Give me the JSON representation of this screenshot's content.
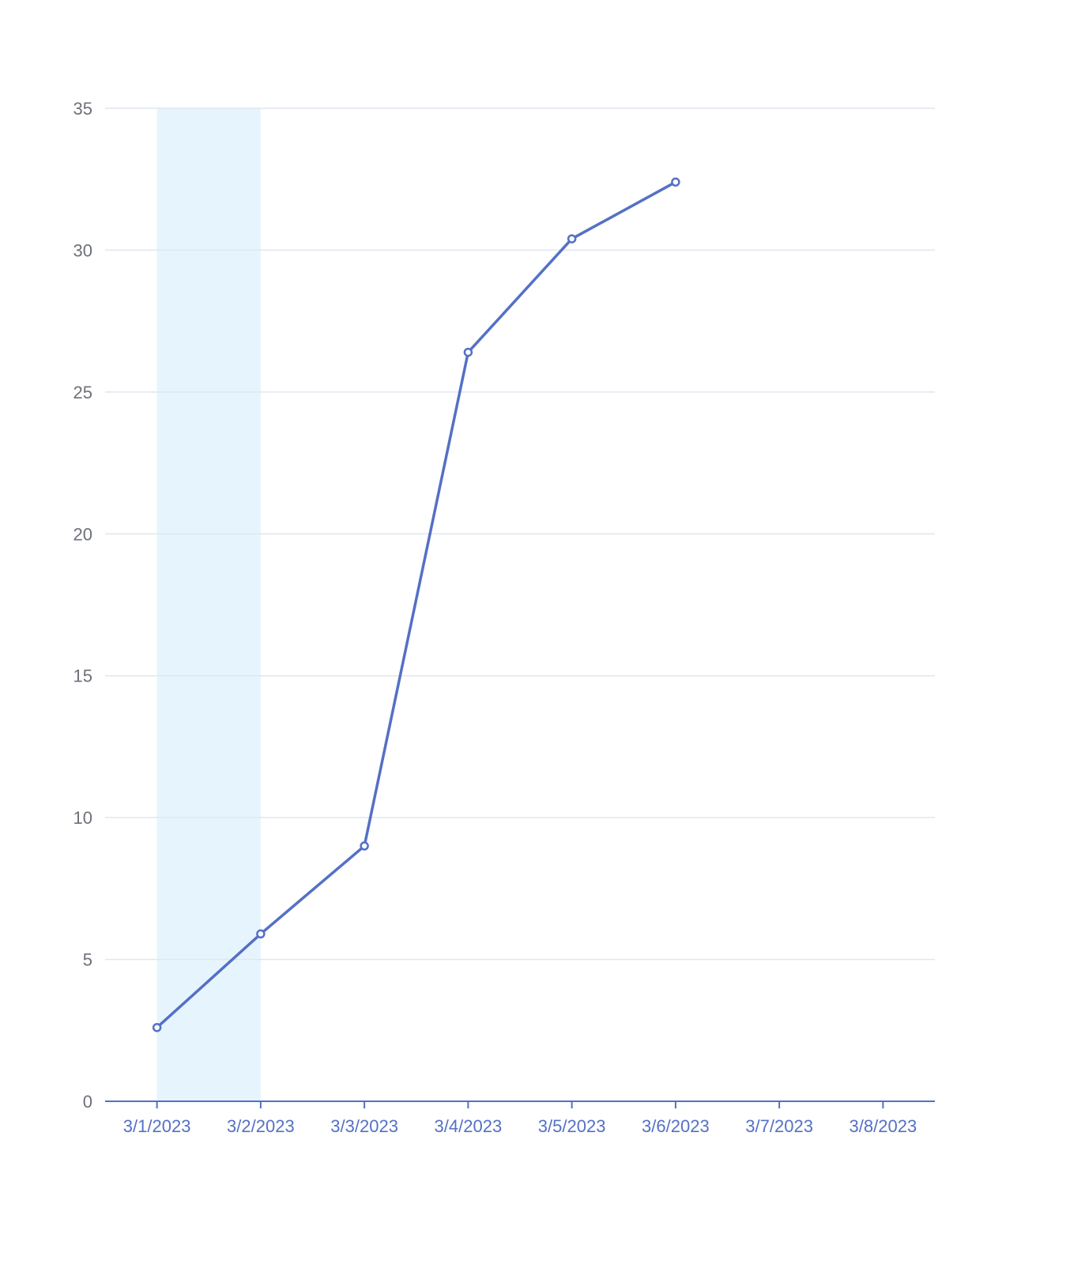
{
  "chart_data": {
    "type": "line",
    "title": "",
    "xlabel": "",
    "ylabel": "",
    "categories": [
      "3/1/2023",
      "3/2/2023",
      "3/3/2023",
      "3/4/2023",
      "3/5/2023",
      "3/6/2023",
      "3/7/2023",
      "3/8/2023"
    ],
    "y_ticks": [
      "0",
      "5",
      "10",
      "15",
      "20",
      "25",
      "30",
      "35"
    ],
    "ylim": [
      0,
      35
    ],
    "grid": true,
    "series": [
      {
        "values": [
          2.6,
          5.9,
          9.0,
          26.4,
          30.4,
          32.4,
          null,
          null
        ]
      }
    ],
    "highlight_band": {
      "from": "3/1/2023",
      "to": "3/2/2023"
    },
    "colors": {
      "line": "#5470c6",
      "axis": "#5470c6",
      "grid": "#e0e6f1",
      "band": "#e6f5fd",
      "y_label": "#6e7079",
      "marker_fill": "#ffffff"
    }
  }
}
